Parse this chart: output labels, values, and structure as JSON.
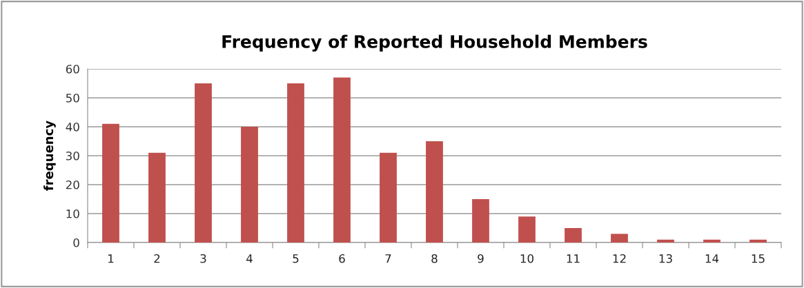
{
  "chart_data": {
    "type": "bar",
    "title": "Frequency of Reported Household Members",
    "ylabel": "frequency",
    "categories": [
      "1",
      "2",
      "3",
      "4",
      "5",
      "6",
      "7",
      "8",
      "9",
      "10",
      "11",
      "12",
      "13",
      "14",
      "15"
    ],
    "values": [
      41,
      31,
      55,
      40,
      55,
      57,
      31,
      35,
      15,
      9,
      5,
      3,
      1,
      1,
      1
    ],
    "color": "#c0504d",
    "ylim": [
      0,
      60
    ],
    "yticks": [
      0,
      10,
      20,
      30,
      40,
      50,
      60
    ],
    "grid": "y",
    "legend": false
  }
}
